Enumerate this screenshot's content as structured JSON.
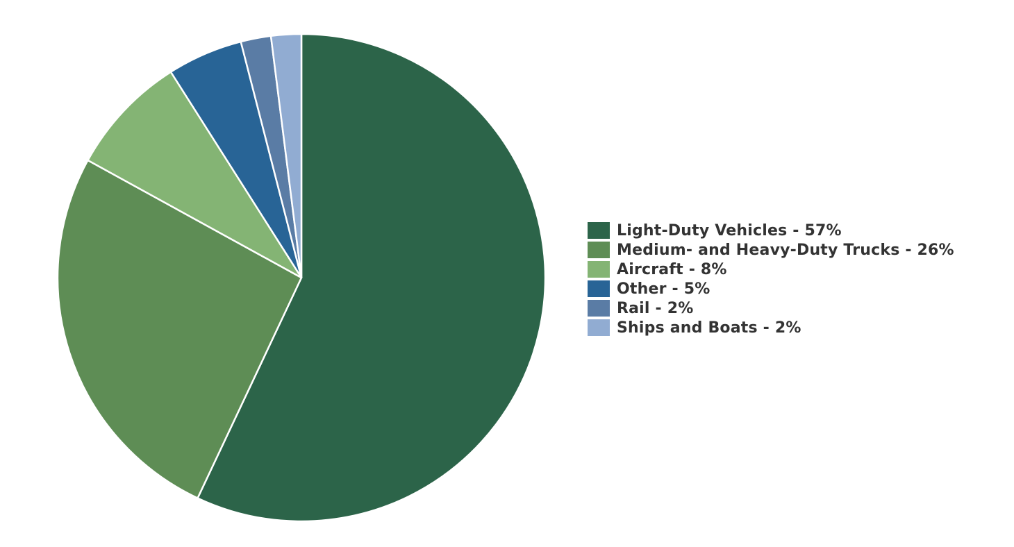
{
  "chart_data": {
    "type": "pie",
    "title": "",
    "legend_position": "right",
    "slices": [
      {
        "label": "Light-Duty Vehicles - 57%",
        "name": "Light-Duty Vehicles",
        "value": 57,
        "color": "#2c6449"
      },
      {
        "label": "Medium- and Heavy-Duty Trucks - 26%",
        "name": "Medium- and Heavy-Duty Trucks",
        "value": 26,
        "color": "#5e8d55"
      },
      {
        "label": "Aircraft - 8%",
        "name": "Aircraft",
        "value": 8,
        "color": "#84b474"
      },
      {
        "label": "Other - 5%",
        "name": "Other",
        "value": 5,
        "color": "#286496"
      },
      {
        "label": "Rail - 2%",
        "name": "Rail",
        "value": 2,
        "color": "#5a7ca5"
      },
      {
        "label": "Ships and Boats - 2%",
        "name": "Ships and Boats",
        "value": 2,
        "color": "#91acd2"
      }
    ]
  }
}
